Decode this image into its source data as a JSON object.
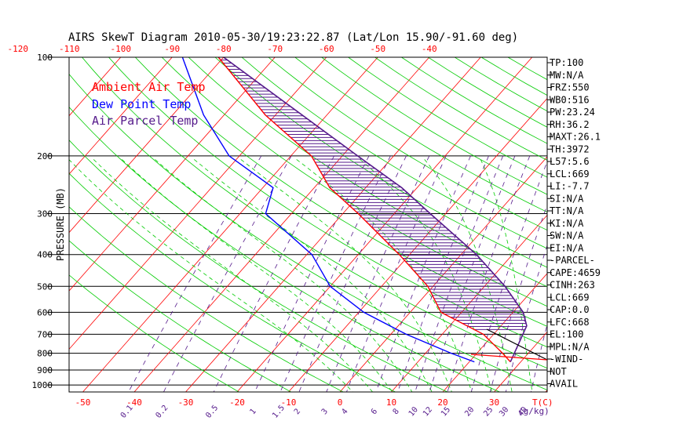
{
  "chart_data": {
    "type": "line",
    "title": "AIRS SkewT Diagram 2010-05-30/19:23:22.87 (Lat/Lon 15.90/-91.60 deg)",
    "ylabel": "PRESSURE (MB)",
    "y_scale": "log",
    "pressure_ticks": [
      "100",
      "200",
      "300",
      "400",
      "500",
      "600",
      "700",
      "800",
      "900",
      "1000"
    ],
    "pressure_values": [
      100,
      200,
      300,
      400,
      500,
      600,
      700,
      800,
      900,
      1000
    ],
    "ylim": [
      1000,
      100
    ],
    "top_temp_ticks": [
      "-120",
      "-110",
      "-100",
      "-90",
      "-80",
      "-70",
      "-60",
      "-50",
      "-40"
    ],
    "top_temp_values": [
      -120,
      -110,
      -100,
      -90,
      -80,
      -70,
      -60,
      -50,
      -40
    ],
    "bottom_temp_ticks": [
      "-50",
      "-40",
      "-30",
      "-20",
      "-10",
      "0",
      "10",
      "20",
      "30"
    ],
    "bottom_temp_values": [
      -50,
      -40,
      -30,
      -20,
      -10,
      0,
      10,
      20,
      30
    ],
    "bottom_axis_label": "T(C)",
    "mixing_ratio_ticks": [
      "0.1",
      "0.2",
      "0.5",
      "1",
      "1.5",
      "2",
      "3",
      "4",
      "6",
      "8",
      "10",
      "12",
      "15",
      "20",
      "25",
      "30",
      "40"
    ],
    "mixing_ratio_values": [
      0.1,
      0.2,
      0.5,
      1,
      1.5,
      2,
      3,
      4,
      6,
      8,
      10,
      12,
      15,
      20,
      25,
      30,
      40
    ],
    "mixing_ratio_label": "(g/kg)",
    "legend": [
      {
        "label": "Ambient Air Temp",
        "color": "#ff0000"
      },
      {
        "label": "Dew Point Temp",
        "color": "#0000ff"
      },
      {
        "label": "Air Parcel Temp",
        "color": "#551a8b"
      }
    ],
    "legend_position": "top-left",
    "series": [
      {
        "name": "Ambient Air Temp",
        "color": "#ff0000",
        "p": [
          100,
          150,
          200,
          250,
          300,
          400,
          500,
          600,
          700,
          800,
          850
        ],
        "t": [
          -81,
          -62,
          -46,
          -37,
          -27,
          -12,
          -1,
          6,
          18,
          25,
          28
        ]
      },
      {
        "name": "Dew Point Temp",
        "color": "#0000ff",
        "p": [
          100,
          150,
          200,
          250,
          300,
          400,
          500,
          600,
          700,
          800,
          850
        ],
        "t": [
          -88,
          -74,
          -62,
          -48,
          -45,
          -29,
          -20,
          -9,
          3,
          15,
          21
        ]
      },
      {
        "name": "Air Parcel Temp",
        "color": "#551a8b",
        "p": [
          100,
          200,
          250,
          300,
          400,
          500,
          600,
          660,
          850
        ],
        "t": [
          -80,
          -37,
          -23,
          -13,
          3,
          14,
          22,
          25,
          28
        ]
      }
    ],
    "dry_adiabats_theta_K": [
      250,
      260,
      270,
      280,
      290,
      300,
      310,
      320,
      330,
      340,
      350,
      360,
      370,
      380,
      390,
      400,
      410,
      420,
      430,
      440,
      450,
      460,
      470,
      480
    ],
    "moist_adiabats_thetaw_C": [
      0,
      4,
      8,
      12,
      16,
      20,
      24,
      28,
      32,
      36
    ],
    "isotherm_step_C": 10,
    "grid": true,
    "indices": [
      "TP:100",
      "MW:N/A",
      "FRZ:550",
      "WB0:516",
      "PW:23.24",
      "RH:36.2",
      "MAXT:26.1",
      "TH:3972",
      "L57:5.6",
      "LCL:669",
      "LI:-7.7",
      "SI:N/A",
      "TT:N/A",
      "KI:N/A",
      "SW:N/A",
      "EI:N/A",
      "-PARCEL-",
      "CAPE:4659",
      "CINH:263",
      "LCL:669",
      "CAP:0.0",
      "LFC:668",
      "EL:100",
      "MPL:N/A",
      "-WIND-",
      "NOT",
      "AVAIL"
    ],
    "colors": {
      "isotherm": "#ff0000",
      "dry_adiabat": "#00cc00",
      "moist_adiabat": "#00cc00",
      "mixing_ratio": "#551a8b",
      "isobar": "#000000",
      "cape_hatch": "#551a8b",
      "axis_text": "#000000",
      "tick_label": "#ff0000"
    }
  }
}
